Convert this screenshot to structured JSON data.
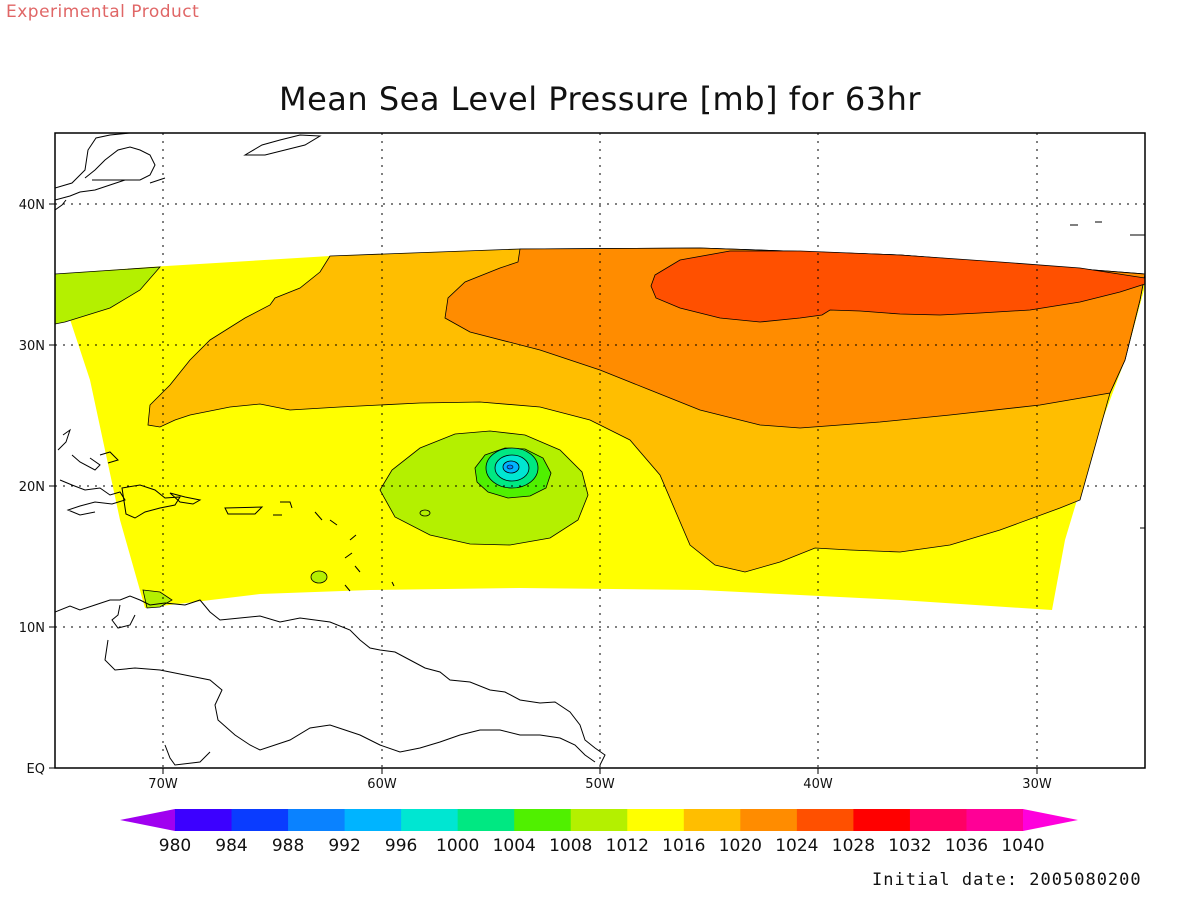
{
  "header": {
    "watermark": "Experimental Product",
    "title": "Mean Sea Level Pressure [mb] for 63hr"
  },
  "footer": {
    "initial_date": "Initial date: 2005080200"
  },
  "map": {
    "lon_labels": [
      "70W",
      "60W",
      "50W",
      "40W",
      "30W"
    ],
    "lat_labels": [
      "EQ",
      "10N",
      "20N",
      "30N",
      "40N"
    ]
  },
  "colorbar": {
    "levels": [
      "980",
      "984",
      "988",
      "992",
      "996",
      "1000",
      "1004",
      "1008",
      "1012",
      "1016",
      "1020",
      "1024",
      "1028",
      "1032",
      "1036",
      "1040"
    ],
    "colors": [
      "#a000f0",
      "#3c00ff",
      "#0a3cff",
      "#0a82ff",
      "#00b4ff",
      "#00e6d2",
      "#00e882",
      "#50f000",
      "#b4f000",
      "#ffff00",
      "#ffbe00",
      "#ff8c00",
      "#ff5000",
      "#ff0000",
      "#ff0064",
      "#ff0096",
      "#ff00dc"
    ]
  }
}
